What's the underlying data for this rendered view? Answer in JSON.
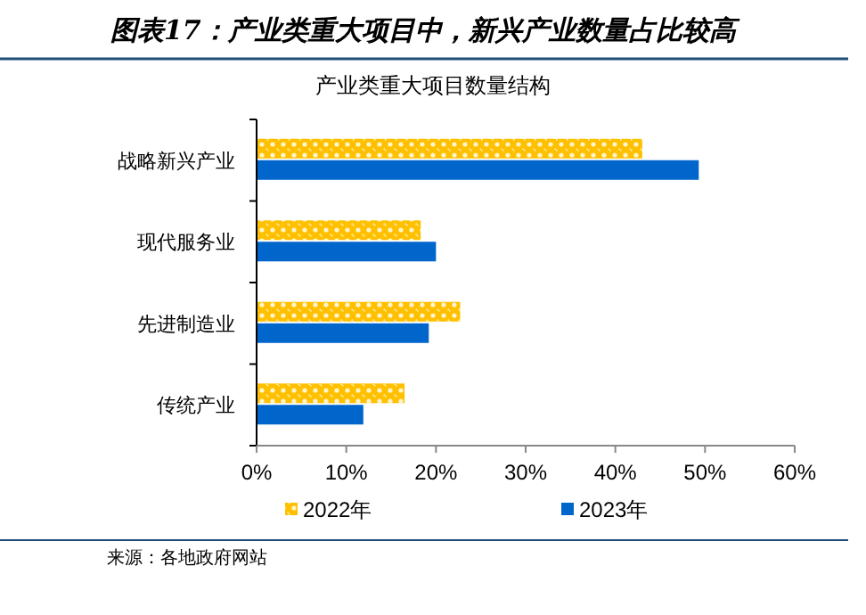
{
  "chart_data": {
    "type": "bar",
    "orientation": "horizontal",
    "title": "图表17：产业类重大项目中，新兴产业数量占比较高",
    "subtitle": "产业类重大项目数量结构",
    "categories": [
      "战略新兴产业",
      "现代服务业",
      "先进制造业",
      "传统产业"
    ],
    "series": [
      {
        "name": "2022年",
        "color": "#ffc000",
        "values": [
          43,
          18.3,
          22.7,
          16.5
        ]
      },
      {
        "name": "2023年",
        "color": "#0066cc",
        "values": [
          49.3,
          20,
          19.2,
          11.9
        ]
      }
    ],
    "xlim": [
      0,
      60
    ],
    "xticks": [
      {
        "value": 0,
        "label": "0%"
      },
      {
        "value": 10,
        "label": "10%"
      },
      {
        "value": 20,
        "label": "20%"
      },
      {
        "value": 30,
        "label": "30%"
      },
      {
        "value": 40,
        "label": "40%"
      },
      {
        "value": 50,
        "label": "50%"
      },
      {
        "value": 60,
        "label": "60%"
      }
    ],
    "legend": "bottom",
    "annotations": [
      "来源：各地政府网站"
    ]
  }
}
